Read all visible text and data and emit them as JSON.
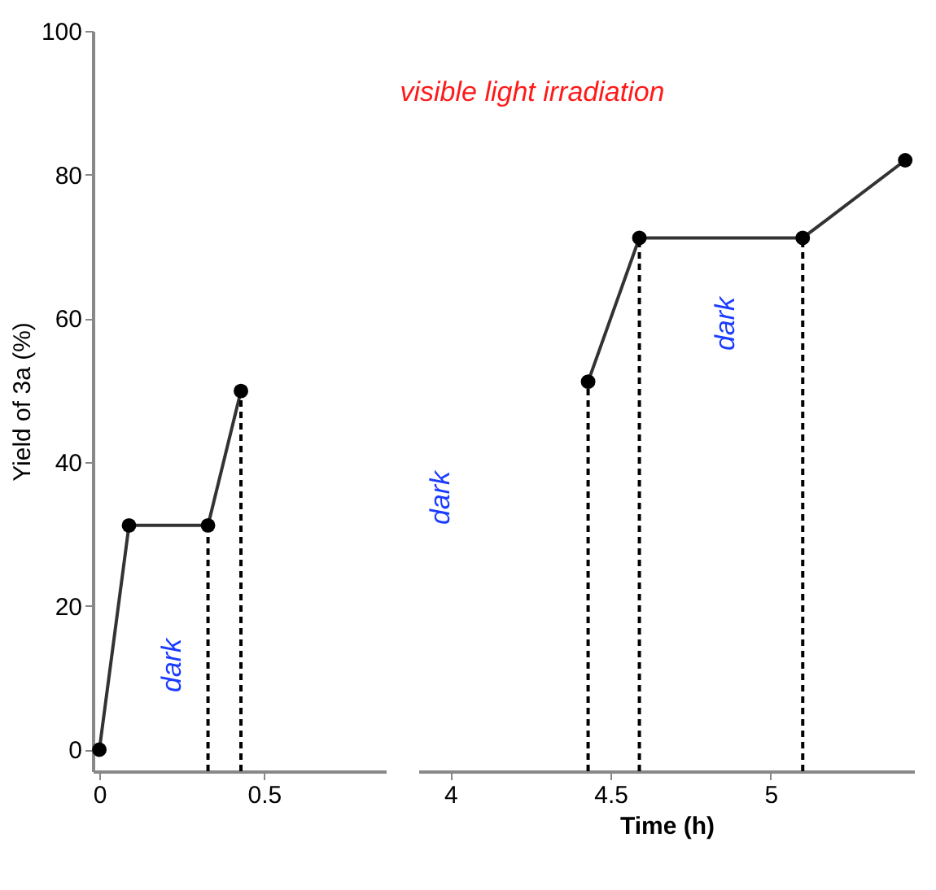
{
  "chart_data": [
    {
      "type": "line",
      "ylabel": "Yield of 3a (%)",
      "x": [
        0,
        0.09,
        0.33,
        0.43
      ],
      "series": [
        {
          "color": "#333333",
          "values": [
            0,
            31.2,
            31.2,
            49.9
          ]
        }
      ],
      "xlim": [
        -0.02,
        0.87
      ],
      "xticks": [
        0,
        0.5
      ],
      "ylim": [
        -3,
        100
      ],
      "yticks": [
        0,
        20,
        40,
        60,
        80,
        100
      ],
      "marker": "circle",
      "line_style": "solid",
      "grid": false,
      "ref_lines": [
        {
          "axis": "x",
          "value": 0.33,
          "color": "#000000",
          "line_style": "dashed"
        },
        {
          "axis": "x",
          "value": 0.43,
          "color": "#000000",
          "line_style": "dashed"
        }
      ],
      "annotations": [
        "dark"
      ]
    },
    {
      "type": "line",
      "xlabel": "Time (h)",
      "x": [
        4.43,
        4.59,
        5.1,
        5.42
      ],
      "series": [
        {
          "color": "#333333",
          "values": [
            51.2,
            71.2,
            71.2,
            82
          ]
        }
      ],
      "xlim": [
        3.9,
        5.45
      ],
      "xticks": [
        4,
        4.5,
        5
      ],
      "ylim": [
        -3,
        100
      ],
      "tick_labels": "x",
      "marker": "circle",
      "line_style": "solid",
      "grid": false,
      "ref_lines": [
        {
          "axis": "x",
          "value": 4.43,
          "color": "#000000",
          "line_style": "dashed"
        },
        {
          "axis": "x",
          "value": 4.59,
          "color": "#000000",
          "line_style": "dashed"
        },
        {
          "axis": "x",
          "value": 5.1,
          "color": "#000000",
          "line_style": "dashed"
        }
      ],
      "annotations": [
        "dark",
        "dark",
        "visible light irradiation"
      ]
    }
  ]
}
